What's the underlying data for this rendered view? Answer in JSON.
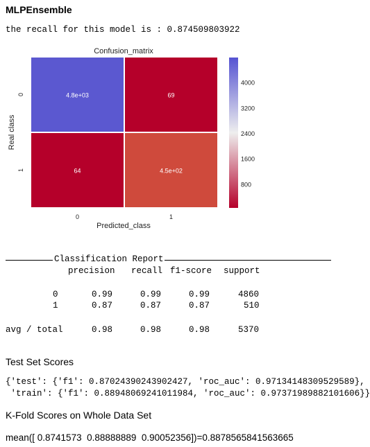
{
  "heading": "MLPEnsemble",
  "recall_line": "the recall for this model is : 0.874509803922",
  "chart_data": {
    "type": "heatmap",
    "title": "Confusion_matrix",
    "xlabel": "Predicted_class",
    "ylabel": "Real class",
    "x_categories": [
      "0",
      "1"
    ],
    "y_categories": [
      "0",
      "1"
    ],
    "values": [
      [
        4800,
        69
      ],
      [
        64,
        450
      ]
    ],
    "cell_labels": [
      [
        "4.8e+03",
        "69"
      ],
      [
        "64",
        "4.5e+02"
      ]
    ],
    "colorbar": {
      "min": 64,
      "max": 4800,
      "ticks": [
        800,
        1600,
        2400,
        3200,
        4000
      ],
      "tick_labels": [
        "800",
        "1600",
        "2400",
        "3200",
        "4000"
      ],
      "colors": {
        "low": "#b5002a",
        "mid": "#eeeeee",
        "high": "#5553d2"
      }
    },
    "cell_colors": [
      [
        "#5b58d0",
        "#b5002a"
      ],
      [
        "#b5002a",
        "#cf4a3c"
      ]
    ]
  },
  "report": {
    "title": "Classification Report",
    "headers": [
      "precision",
      "recall",
      "f1-score",
      "support"
    ],
    "rows": [
      {
        "label": "0",
        "values": [
          "0.99",
          "0.99",
          "0.99",
          "4860"
        ]
      },
      {
        "label": "1",
        "values": [
          "0.87",
          "0.87",
          "0.87",
          "510"
        ]
      }
    ],
    "total": {
      "label": "avg / total",
      "values": [
        "0.98",
        "0.98",
        "0.98",
        "5370"
      ]
    }
  },
  "test_scores": {
    "heading": "Test Set Scores",
    "line1": "{'test': {'f1': 0.87024390243902427, 'roc_auc': 0.97134148309529589},",
    "line2": " 'train': {'f1': 0.88948069241011984, 'roc_auc': 0.97371989882101606}}"
  },
  "kfold": {
    "heading": "K-Fold Scores on Whole Data Set",
    "line": "mean([ 0.8741573  0.88888889  0.90052356])=0.8878565841563665"
  }
}
